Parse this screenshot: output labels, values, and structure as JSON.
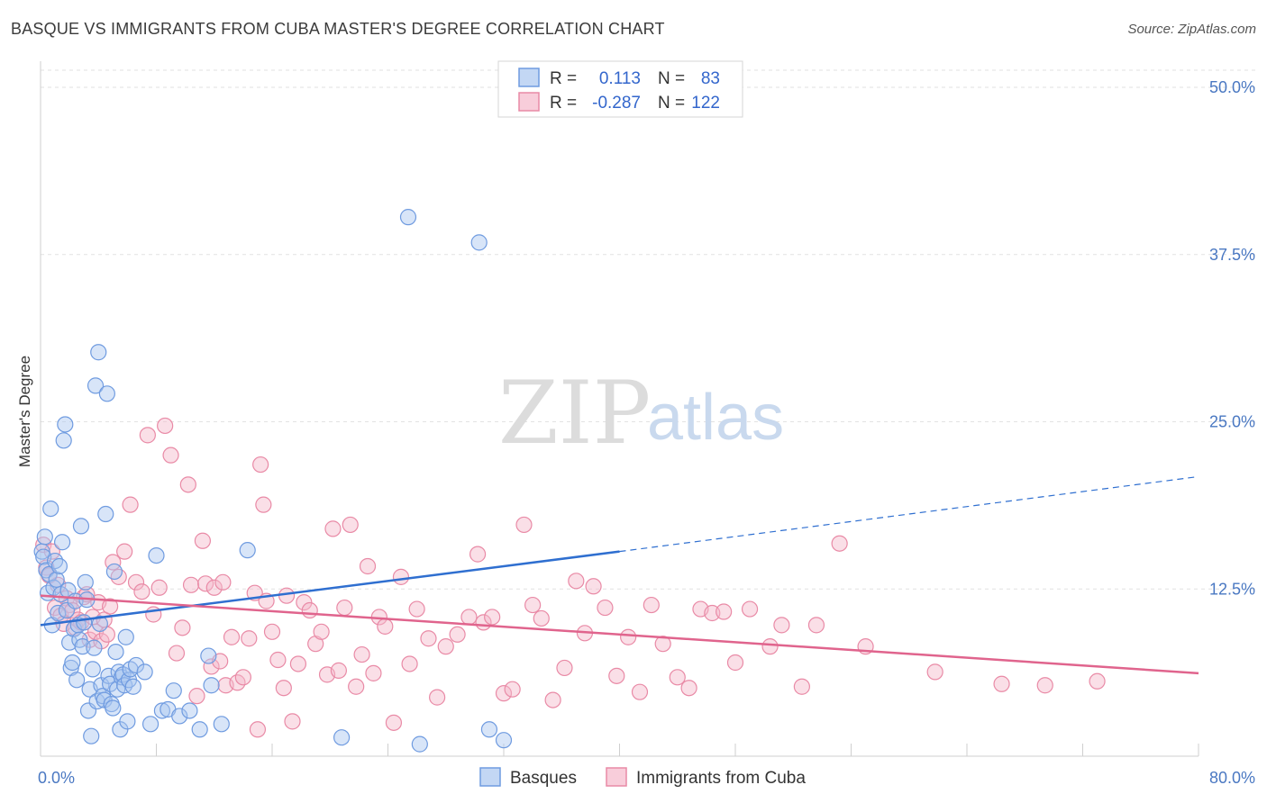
{
  "title": "BASQUE VS IMMIGRANTS FROM CUBA MASTER'S DEGREE CORRELATION CHART",
  "source": "Source: ZipAtlas.com",
  "watermark": {
    "zip": "ZIP",
    "atlas": "atlas"
  },
  "colors": {
    "blue_fill": "#a9c6f0",
    "blue_stroke": "#6f9be0",
    "blue_line": "#2f6fd0",
    "pink_fill": "#f5b8ca",
    "pink_stroke": "#e98aa6",
    "pink_line": "#e0648d",
    "axis_text": "#4a78c2",
    "grid": "#e2e2e2"
  },
  "legend_top": {
    "rows": [
      {
        "r_label": "R =",
        "r_value": "0.113",
        "n_label": "N =",
        "n_value": "83"
      },
      {
        "r_label": "R =",
        "r_value": "-0.287",
        "n_label": "N =",
        "n_value": "122"
      }
    ]
  },
  "legend_bottom": {
    "items": [
      "Basques",
      "Immigrants from Cuba"
    ]
  },
  "chart_data": {
    "type": "scatter",
    "xlabel": "",
    "ylabel": "Master's Degree",
    "xlim": [
      0,
      80
    ],
    "ylim": [
      0,
      50
    ],
    "x_tick_labels": [
      "0.0%",
      "80.0%"
    ],
    "y_tick_labels": [
      "12.5%",
      "25.0%",
      "37.5%",
      "50.0%"
    ],
    "y_ticks": [
      12.5,
      25.0,
      37.5,
      50.0
    ],
    "grid": true,
    "series": [
      {
        "name": "Basques",
        "r": 0.113,
        "n": 83,
        "trend": {
          "x0": 0,
          "y0": 9.8,
          "x1": 40,
          "y1": 15.3,
          "x_dash_end": 80,
          "y_dash_end": 20.9
        },
        "points": [
          [
            0.1,
            15.3
          ],
          [
            0.2,
            14.9
          ],
          [
            0.3,
            16.4
          ],
          [
            0.4,
            13.9
          ],
          [
            0.5,
            12.2
          ],
          [
            0.6,
            13.6
          ],
          [
            0.7,
            18.5
          ],
          [
            0.8,
            9.8
          ],
          [
            0.9,
            12.6
          ],
          [
            1.0,
            14.6
          ],
          [
            1.1,
            13.2
          ],
          [
            1.2,
            10.7
          ],
          [
            1.3,
            14.2
          ],
          [
            1.4,
            12.1
          ],
          [
            1.5,
            16.0
          ],
          [
            1.6,
            23.6
          ],
          [
            1.7,
            24.8
          ],
          [
            1.8,
            10.9
          ],
          [
            1.9,
            12.4
          ],
          [
            2.0,
            8.5
          ],
          [
            2.1,
            6.6
          ],
          [
            2.2,
            7.0
          ],
          [
            2.3,
            9.5
          ],
          [
            2.4,
            11.6
          ],
          [
            2.5,
            5.7
          ],
          [
            2.6,
            9.8
          ],
          [
            2.7,
            8.7
          ],
          [
            2.8,
            17.2
          ],
          [
            2.9,
            8.2
          ],
          [
            3.0,
            10.0
          ],
          [
            3.1,
            13.0
          ],
          [
            3.2,
            11.7
          ],
          [
            3.3,
            3.4
          ],
          [
            3.4,
            5.0
          ],
          [
            3.5,
            1.5
          ],
          [
            3.6,
            6.5
          ],
          [
            3.7,
            8.1
          ],
          [
            3.8,
            27.7
          ],
          [
            3.9,
            4.1
          ],
          [
            4.0,
            30.2
          ],
          [
            4.1,
            9.9
          ],
          [
            4.2,
            5.3
          ],
          [
            4.3,
            4.5
          ],
          [
            4.4,
            4.2
          ],
          [
            4.5,
            18.1
          ],
          [
            4.6,
            27.1
          ],
          [
            4.7,
            6.0
          ],
          [
            4.8,
            5.4
          ],
          [
            4.9,
            3.9
          ],
          [
            5.0,
            3.6
          ],
          [
            5.1,
            13.8
          ],
          [
            5.2,
            7.8
          ],
          [
            5.3,
            5.0
          ],
          [
            5.4,
            6.3
          ],
          [
            5.5,
            2.0
          ],
          [
            5.6,
            5.9
          ],
          [
            5.7,
            6.1
          ],
          [
            5.8,
            5.3
          ],
          [
            5.9,
            8.9
          ],
          [
            6.0,
            2.6
          ],
          [
            6.1,
            5.7
          ],
          [
            6.2,
            6.5
          ],
          [
            6.4,
            5.2
          ],
          [
            6.6,
            6.8
          ],
          [
            7.2,
            6.3
          ],
          [
            7.6,
            2.4
          ],
          [
            8.0,
            15.0
          ],
          [
            8.4,
            3.4
          ],
          [
            8.8,
            3.5
          ],
          [
            9.2,
            4.9
          ],
          [
            9.6,
            3.0
          ],
          [
            10.3,
            3.4
          ],
          [
            11.0,
            2.0
          ],
          [
            11.6,
            7.5
          ],
          [
            11.8,
            5.3
          ],
          [
            12.5,
            2.4
          ],
          [
            14.3,
            15.4
          ],
          [
            20.8,
            1.4
          ],
          [
            25.4,
            40.3
          ],
          [
            26.2,
            0.9
          ],
          [
            30.3,
            38.4
          ],
          [
            31.0,
            2.0
          ],
          [
            32.0,
            1.2
          ]
        ]
      },
      {
        "name": "Immigrants from Cuba",
        "r": -0.287,
        "n": 122,
        "trend": {
          "x0": 0,
          "y0": 12.0,
          "x1": 80,
          "y1": 6.2
        },
        "points": [
          [
            0.2,
            15.8
          ],
          [
            0.4,
            14.1
          ],
          [
            0.6,
            13.5
          ],
          [
            0.8,
            15.3
          ],
          [
            1.0,
            11.1
          ],
          [
            1.2,
            12.8
          ],
          [
            1.4,
            10.5
          ],
          [
            1.6,
            9.9
          ],
          [
            1.8,
            11.8
          ],
          [
            2.0,
            11.3
          ],
          [
            2.2,
            10.9
          ],
          [
            2.4,
            9.6
          ],
          [
            2.6,
            10.2
          ],
          [
            2.8,
            10.0
          ],
          [
            3.0,
            11.9
          ],
          [
            3.2,
            12.1
          ],
          [
            3.4,
            8.7
          ],
          [
            3.6,
            10.4
          ],
          [
            3.8,
            9.3
          ],
          [
            4.0,
            11.5
          ],
          [
            4.2,
            8.6
          ],
          [
            4.4,
            10.2
          ],
          [
            4.6,
            9.1
          ],
          [
            4.8,
            11.2
          ],
          [
            5.0,
            14.5
          ],
          [
            5.4,
            13.4
          ],
          [
            5.8,
            15.3
          ],
          [
            6.2,
            18.8
          ],
          [
            6.6,
            13.0
          ],
          [
            7.0,
            12.3
          ],
          [
            7.4,
            24.0
          ],
          [
            7.8,
            10.6
          ],
          [
            8.2,
            12.6
          ],
          [
            8.6,
            24.7
          ],
          [
            9.0,
            22.5
          ],
          [
            9.4,
            7.7
          ],
          [
            9.8,
            9.6
          ],
          [
            10.2,
            20.3
          ],
          [
            10.4,
            12.8
          ],
          [
            10.8,
            4.5
          ],
          [
            11.2,
            16.1
          ],
          [
            11.4,
            12.9
          ],
          [
            11.8,
            6.7
          ],
          [
            12.0,
            12.6
          ],
          [
            12.4,
            7.1
          ],
          [
            12.6,
            13.0
          ],
          [
            12.8,
            5.3
          ],
          [
            13.2,
            8.9
          ],
          [
            13.6,
            5.5
          ],
          [
            14.0,
            5.9
          ],
          [
            14.4,
            8.8
          ],
          [
            14.8,
            12.2
          ],
          [
            15.0,
            2.0
          ],
          [
            15.2,
            21.8
          ],
          [
            15.4,
            18.8
          ],
          [
            15.6,
            11.6
          ],
          [
            16.0,
            9.3
          ],
          [
            16.4,
            7.2
          ],
          [
            16.8,
            5.1
          ],
          [
            17.0,
            12.0
          ],
          [
            17.4,
            2.6
          ],
          [
            17.8,
            6.9
          ],
          [
            18.2,
            11.5
          ],
          [
            18.6,
            10.9
          ],
          [
            19.0,
            8.4
          ],
          [
            19.4,
            9.3
          ],
          [
            19.8,
            6.1
          ],
          [
            20.2,
            17.0
          ],
          [
            20.6,
            6.4
          ],
          [
            21.0,
            11.1
          ],
          [
            21.4,
            17.3
          ],
          [
            21.8,
            5.2
          ],
          [
            22.2,
            7.6
          ],
          [
            22.6,
            14.2
          ],
          [
            23.0,
            6.2
          ],
          [
            23.4,
            10.4
          ],
          [
            23.8,
            9.7
          ],
          [
            24.4,
            2.5
          ],
          [
            24.9,
            13.4
          ],
          [
            25.5,
            6.9
          ],
          [
            26.0,
            11.0
          ],
          [
            26.8,
            8.8
          ],
          [
            27.4,
            4.4
          ],
          [
            28.0,
            8.2
          ],
          [
            28.8,
            9.1
          ],
          [
            29.6,
            10.4
          ],
          [
            30.2,
            15.1
          ],
          [
            30.6,
            10.0
          ],
          [
            31.2,
            10.4
          ],
          [
            32.0,
            4.7
          ],
          [
            32.6,
            5.0
          ],
          [
            33.4,
            17.3
          ],
          [
            34.0,
            11.3
          ],
          [
            34.6,
            10.3
          ],
          [
            35.4,
            4.2
          ],
          [
            36.2,
            6.6
          ],
          [
            37.0,
            13.1
          ],
          [
            37.6,
            9.2
          ],
          [
            38.2,
            12.7
          ],
          [
            39.0,
            11.1
          ],
          [
            39.8,
            6.0
          ],
          [
            40.6,
            8.9
          ],
          [
            41.4,
            4.8
          ],
          [
            42.2,
            11.3
          ],
          [
            43.0,
            8.4
          ],
          [
            44.0,
            5.9
          ],
          [
            44.8,
            5.1
          ],
          [
            45.6,
            11.0
          ],
          [
            46.4,
            10.7
          ],
          [
            47.2,
            10.8
          ],
          [
            48.0,
            7.0
          ],
          [
            49.0,
            11.0
          ],
          [
            50.4,
            8.2
          ],
          [
            51.2,
            9.8
          ],
          [
            52.6,
            5.2
          ],
          [
            53.6,
            9.8
          ],
          [
            55.2,
            15.9
          ],
          [
            57.0,
            8.2
          ],
          [
            61.8,
            6.3
          ],
          [
            66.4,
            5.4
          ],
          [
            69.4,
            5.3
          ],
          [
            73.0,
            5.6
          ]
        ]
      }
    ]
  }
}
